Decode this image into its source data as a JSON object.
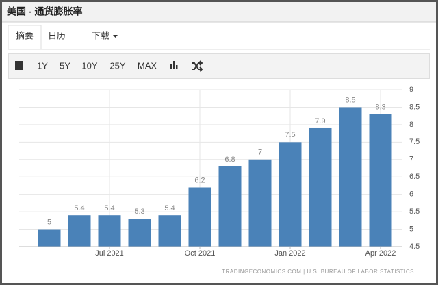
{
  "header": {
    "title": "美国 - 通货膨胀率"
  },
  "tabs": [
    "摘要",
    "日历",
    "下载"
  ],
  "toolbar": [
    "1Y",
    "5Y",
    "10Y",
    "25Y",
    "MAX"
  ],
  "chart_data": {
    "type": "bar",
    "categories": [
      null,
      null,
      "Jul 2021",
      null,
      null,
      "Oct 2021",
      null,
      null,
      "Jan 2022",
      null,
      null,
      "Apr 2022"
    ],
    "values": [
      5,
      5.4,
      5.4,
      5.3,
      5.4,
      6.2,
      6.8,
      7,
      7.5,
      7.9,
      8.5,
      8.3
    ],
    "color": "#4a82b8",
    "ylim": [
      4.5,
      9
    ],
    "yticks": [
      4.5,
      5,
      5.5,
      6,
      6.5,
      7,
      7.5,
      8,
      8.5,
      9
    ],
    "grid": true,
    "y_axis_side": "right",
    "source": "TRADINGECONOMICS.COM | U.S. BUREAU OF LABOR STATISTICS"
  }
}
